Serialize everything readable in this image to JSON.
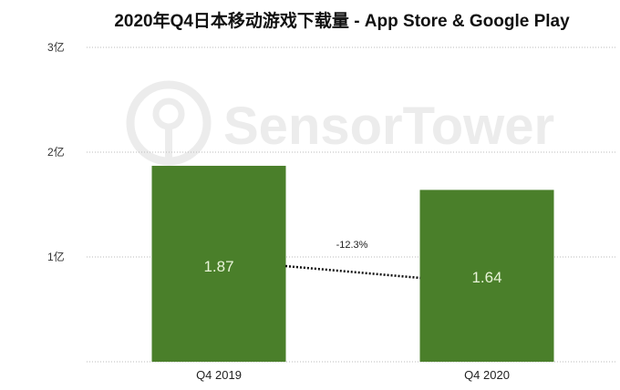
{
  "chart_data": {
    "type": "bar",
    "title": "2020年Q4日本移动游戏下载量 - App Store & Google Play",
    "categories": [
      "Q4  2019",
      "Q4 2020"
    ],
    "values": [
      1.87,
      1.64
    ],
    "value_labels": [
      "1.87",
      "1.64"
    ],
    "ylim": [
      0,
      3
    ],
    "yticks": [
      {
        "value": 1,
        "label": "1亿"
      },
      {
        "value": 2,
        "label": "2亿"
      },
      {
        "value": 3,
        "label": "3亿"
      }
    ],
    "ylabel": "",
    "xlabel": "",
    "grid": true,
    "annotation": "-12.3%",
    "watermark": "SensorTower",
    "colors": {
      "bar": "#4a7f2a",
      "grid": "#bbbbbb",
      "watermark": "#ececec"
    }
  }
}
